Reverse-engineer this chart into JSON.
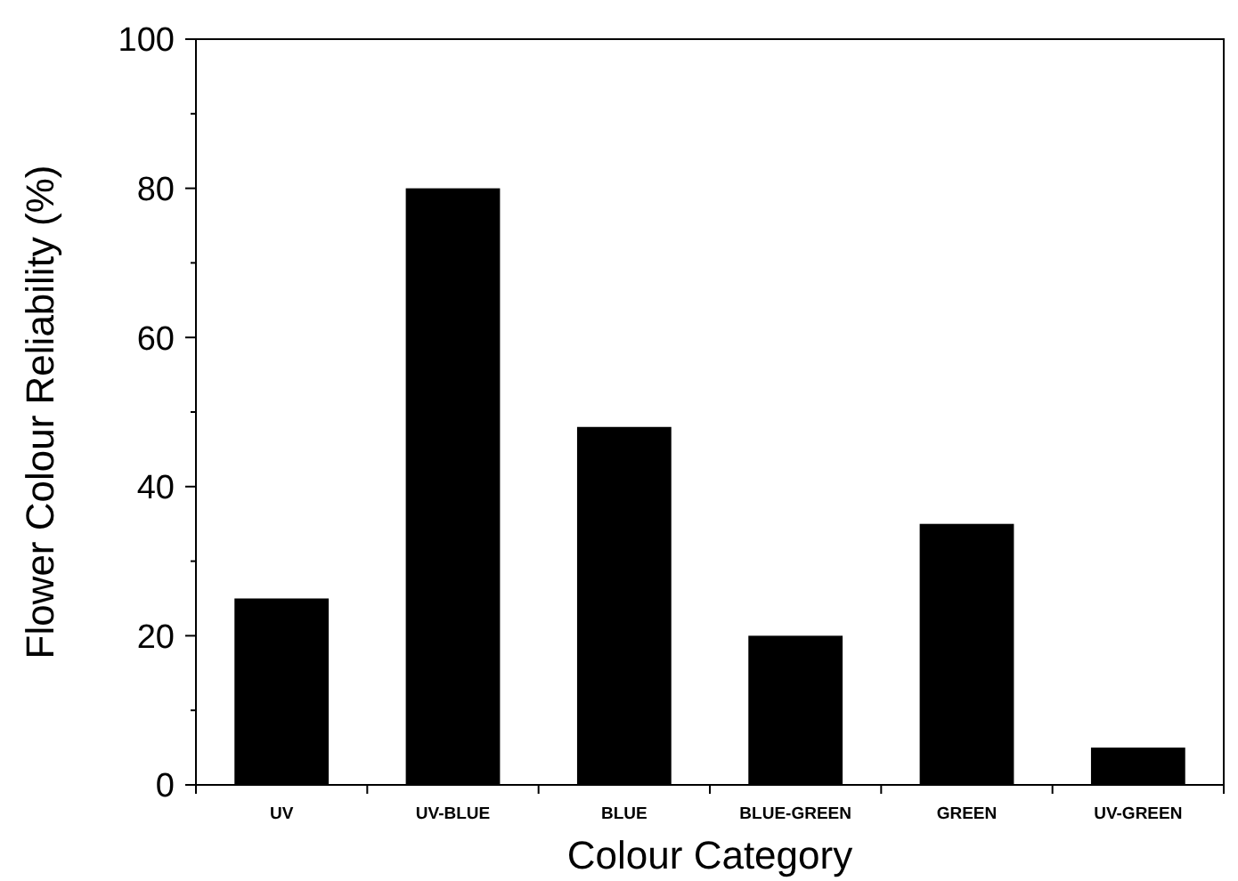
{
  "chart_data": {
    "type": "bar",
    "xlabel": "Colour Category",
    "ylabel": "Flower Colour Reliability (%)",
    "categories": [
      "UV",
      "UV-BLUE",
      "BLUE",
      "BLUE-GREEN",
      "GREEN",
      "UV-GREEN"
    ],
    "values": [
      25,
      80,
      48,
      20,
      35,
      5
    ],
    "color": "#000000",
    "ylim": [
      0,
      100
    ],
    "yticks": [
      0,
      {
        "value": 10,
        "label": null
      },
      20,
      {
        "value": 30,
        "label": null
      },
      40,
      {
        "value": 50,
        "label": null
      },
      60,
      {
        "value": 70,
        "label": null
      },
      80,
      {
        "value": 90,
        "label": null
      },
      100
    ],
    "grid": false
  }
}
